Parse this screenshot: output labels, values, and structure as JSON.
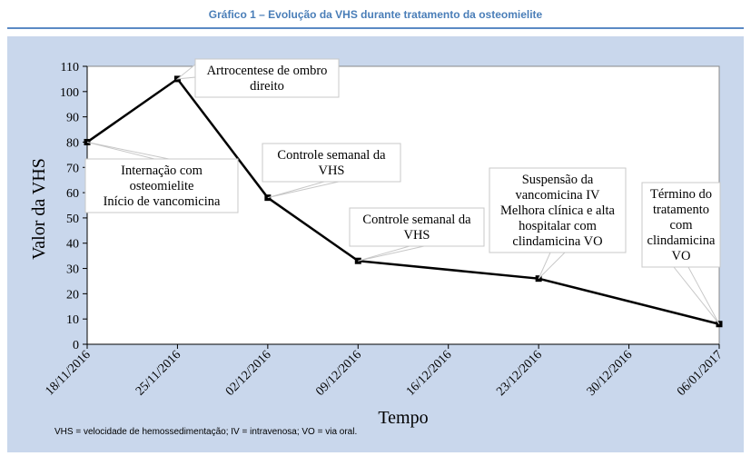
{
  "figure": {
    "title": "Gráfico 1 – Evolução da VHS durante tratamento da osteomielite",
    "footnote": "VHS = velocidade de hemossedimentação; IV = intravenosa; VO = via oral."
  },
  "chart_data": {
    "type": "line",
    "xlabel": "Tempo",
    "ylabel": "Valor da VHS",
    "ylim": [
      0,
      110
    ],
    "yticks": [
      0,
      10,
      20,
      30,
      40,
      50,
      60,
      70,
      80,
      90,
      100,
      110
    ],
    "xticks": [
      "18/11/2016",
      "25/11/2016",
      "02/12/2016",
      "09/12/2016",
      "16/12/2016",
      "23/12/2016",
      "30/12/2016",
      "06/01/2017"
    ],
    "xlim": [
      "18/11/2016",
      "06/01/2017"
    ],
    "grid": false,
    "series": [
      {
        "color": "#000000",
        "points": [
          {
            "x": "18/11/2016",
            "y": 80
          },
          {
            "x": "25/11/2016",
            "y": 105
          },
          {
            "x": "02/12/2016",
            "y": 58
          },
          {
            "x": "09/12/2016",
            "y": 33
          },
          {
            "x": "23/12/2016",
            "y": 26
          },
          {
            "x": "06/01/2017",
            "y": 8
          }
        ]
      }
    ],
    "annotations": [
      {
        "point": 0,
        "lines": [
          "Internação com",
          "osteomielite",
          "Início de vancomicina"
        ]
      },
      {
        "point": 1,
        "lines": [
          "Artrocentese de ombro",
          "direito"
        ]
      },
      {
        "point": 2,
        "lines": [
          "Controle semanal da",
          "VHS"
        ]
      },
      {
        "point": 3,
        "lines": [
          "Controle semanal da",
          "VHS"
        ]
      },
      {
        "point": 4,
        "lines": [
          "Suspensão da",
          "vancomicina IV",
          "Melhora clínica e alta",
          "hospitalar com",
          "clindamicina VO"
        ]
      },
      {
        "point": 5,
        "lines": [
          "Término do",
          "tratamento",
          "com",
          "clindamicina",
          "VO"
        ]
      }
    ]
  }
}
